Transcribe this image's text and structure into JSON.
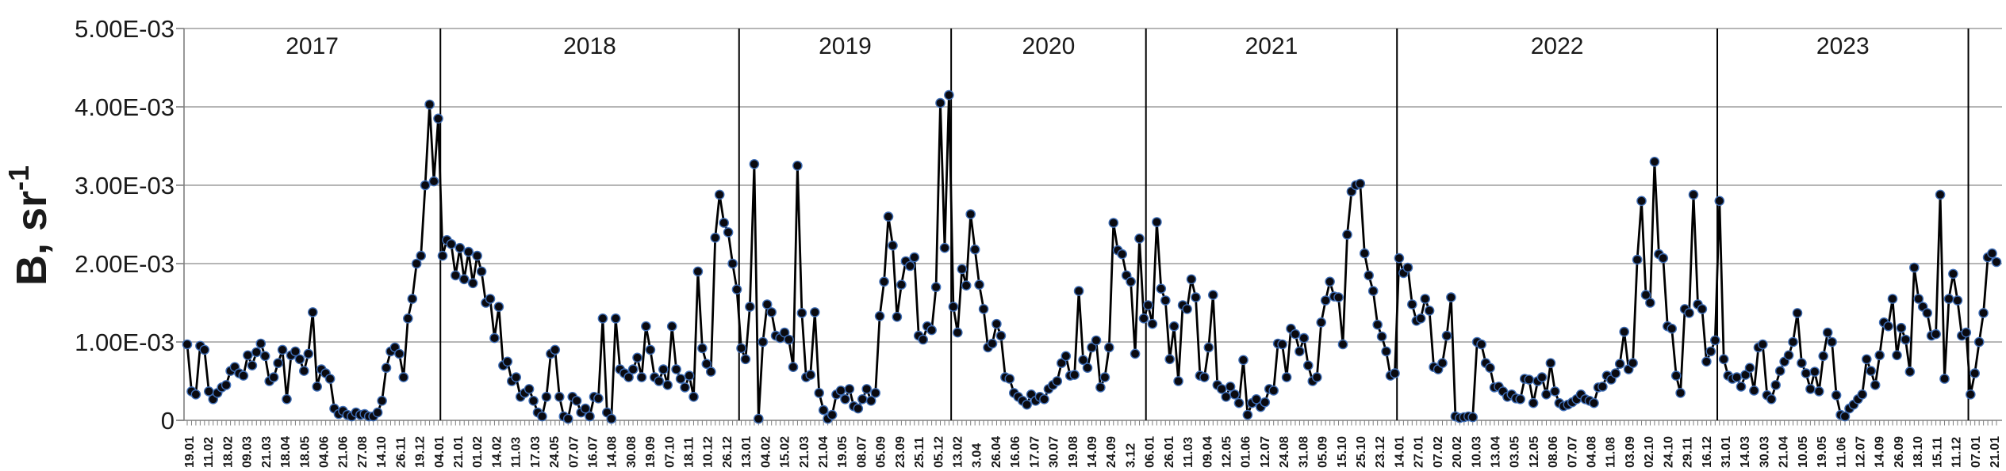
{
  "chart_data": {
    "type": "line",
    "title": "",
    "xlabel": "",
    "ylabel": "B, sr⁻¹",
    "ylabel_base": "B, sr",
    "ylabel_sup": "-1",
    "ylim": [
      0,
      0.005
    ],
    "values_scale": 0.001,
    "values_unit": "sr^-1 (values listed in units of 1e-3)",
    "grid": true,
    "legend_position": "none",
    "marker": "filled-circle",
    "colors": {
      "line": "#000000",
      "marker_fill": "#0a0a10",
      "marker_edge": "#3e6db5",
      "gridline": "#9e9e9e",
      "axis": "#7f7f7f",
      "divider": "#000000",
      "text": "#1a1a1a"
    },
    "y_tick_labels": [
      "0",
      "1.00E-03",
      "2.00E-03",
      "3.00E-03",
      "4.00E-03",
      "5.00E-03"
    ],
    "x_tick_labels": [
      "19.01",
      "11.02",
      "18.02",
      "09.03",
      "21.03",
      "18.04",
      "18.05",
      "04.06",
      "21.06",
      "27.08",
      "14.10",
      "26.11",
      "19.12",
      "04.01",
      "21.01",
      "01.02",
      "14.02",
      "11.03",
      "17.03",
      "24.05",
      "07.07",
      "16.07",
      "14.08",
      "30.08",
      "19.09",
      "07.10",
      "18.11",
      "10.12",
      "26.12",
      "13.01",
      "04.02",
      "15.02",
      "21.03",
      "21.04",
      "19.05",
      "08.07",
      "05.09",
      "23.09",
      "25.11",
      "05.12",
      "13.02",
      "3.04",
      "26.04",
      "16.06",
      "17.07",
      "30.07",
      "19.08",
      "14.09",
      "24.09",
      "3.12",
      "06.01",
      "26.01",
      "11.03",
      "09.04",
      "12.05",
      "01.06",
      "12.07",
      "24.08",
      "31.08",
      "05.09",
      "15.10",
      "25.10",
      "23.12",
      "14.01",
      "27.01",
      "07.02",
      "20.02",
      "10.03",
      "13.04",
      "03.05",
      "12.05",
      "08.06",
      "07.07",
      "04.08",
      "11.08",
      "03.09",
      "02.10",
      "24.10",
      "29.11",
      "16.12",
      "31.01",
      "14.03",
      "30.03",
      "21.04",
      "10.05",
      "19.05",
      "11.06",
      "12.07",
      "14.09",
      "26.09",
      "18.10",
      "15.11",
      "11.12",
      "07.01",
      "21.01"
    ],
    "year_groups": [
      {
        "year": "2017",
        "values": [
          0.97,
          0.37,
          0.33,
          0.95,
          0.9,
          0.37,
          0.27,
          0.35,
          0.42,
          0.45,
          0.63,
          0.68,
          0.6,
          0.57,
          0.83,
          0.7,
          0.87,
          0.98,
          0.82,
          0.5,
          0.55,
          0.73,
          0.9,
          0.27,
          0.83,
          0.88,
          0.78,
          0.63,
          0.85,
          1.38,
          0.43,
          0.65,
          0.6,
          0.53,
          0.15,
          0.08,
          0.12,
          0.07,
          0.05,
          0.1,
          0.07,
          0.08,
          0.05,
          0.05,
          0.1,
          0.25,
          0.67,
          0.88,
          0.93,
          0.85,
          0.55,
          1.3,
          1.55,
          2.0,
          2.1,
          3.0,
          4.03,
          3.05,
          3.85
        ]
      },
      {
        "year": "2018",
        "values": [
          2.1,
          2.3,
          2.25,
          1.85,
          2.2,
          1.8,
          2.15,
          1.75,
          2.1,
          1.9,
          1.5,
          1.55,
          1.05,
          1.45,
          0.7,
          0.75,
          0.5,
          0.55,
          0.3,
          0.35,
          0.4,
          0.25,
          0.1,
          0.05,
          0.3,
          0.85,
          0.9,
          0.3,
          0.05,
          0.02,
          0.3,
          0.25,
          0.1,
          0.15,
          0.05,
          0.3,
          0.28,
          1.3,
          0.1,
          0.02,
          1.3,
          0.65,
          0.6,
          0.55,
          0.65,
          0.8,
          0.55,
          1.2,
          0.9,
          0.55,
          0.5,
          0.65,
          0.45,
          1.2,
          0.65,
          0.53,
          0.42,
          0.57,
          0.3,
          1.9,
          0.92,
          0.72,
          0.62,
          2.33,
          2.88,
          2.52,
          2.4,
          2.0,
          1.67
        ]
      },
      {
        "year": "2019",
        "values": [
          0.92,
          0.78,
          1.45,
          3.27,
          0.02,
          1.0,
          1.48,
          1.38,
          1.08,
          1.05,
          1.12,
          1.03,
          0.68,
          3.25,
          1.37,
          0.55,
          0.58,
          1.38,
          0.35,
          0.13,
          0.02,
          0.07,
          0.33,
          0.38,
          0.27,
          0.4,
          0.18,
          0.15,
          0.27,
          0.4,
          0.25,
          0.35,
          1.33,
          1.77,
          2.6,
          2.23,
          1.32,
          1.73,
          2.03,
          1.97,
          2.08,
          1.08,
          1.03,
          1.2,
          1.15,
          1.7,
          4.05,
          2.2,
          4.15
        ]
      },
      {
        "year": "2020",
        "values": [
          1.45,
          1.12,
          1.93,
          1.72,
          2.63,
          2.18,
          1.73,
          1.42,
          0.93,
          0.98,
          1.23,
          1.08,
          0.55,
          0.53,
          0.35,
          0.3,
          0.25,
          0.2,
          0.33,
          0.25,
          0.3,
          0.27,
          0.4,
          0.45,
          0.5,
          0.73,
          0.82,
          0.57,
          0.58,
          1.65,
          0.77,
          0.67,
          0.93,
          1.02,
          0.42,
          0.55,
          0.93,
          2.52,
          2.17,
          2.12,
          1.85,
          1.77,
          0.85,
          2.32,
          1.3
        ]
      },
      {
        "year": "2021",
        "values": [
          1.47,
          1.23,
          2.53,
          1.68,
          1.53,
          0.78,
          1.2,
          0.5,
          1.47,
          1.42,
          1.8,
          1.57,
          0.57,
          0.55,
          0.93,
          1.6,
          0.45,
          0.4,
          0.3,
          0.43,
          0.33,
          0.22,
          0.77,
          0.07,
          0.22,
          0.27,
          0.17,
          0.23,
          0.4,
          0.38,
          0.98,
          0.97,
          0.55,
          1.17,
          1.1,
          0.88,
          1.05,
          0.7,
          0.5,
          0.55,
          1.25,
          1.53,
          1.77,
          1.58,
          1.57,
          0.97,
          2.37,
          2.92,
          3.0,
          3.02,
          2.13,
          1.85,
          1.65,
          1.22,
          1.07,
          0.88,
          0.57,
          0.6
        ]
      },
      {
        "year": "2022",
        "values": [
          2.07,
          1.88,
          1.95,
          1.48,
          1.27,
          1.3,
          1.55,
          1.4,
          0.68,
          0.65,
          0.73,
          1.08,
          1.57,
          0.05,
          0.03,
          0.04,
          0.05,
          0.04,
          1.0,
          0.97,
          0.73,
          0.67,
          0.42,
          0.43,
          0.37,
          0.3,
          0.33,
          0.28,
          0.27,
          0.53,
          0.52,
          0.22,
          0.5,
          0.55,
          0.33,
          0.73,
          0.37,
          0.22,
          0.18,
          0.2,
          0.23,
          0.27,
          0.33,
          0.27,
          0.25,
          0.22,
          0.42,
          0.43,
          0.57,
          0.52,
          0.6,
          0.72,
          1.13,
          0.65,
          0.73,
          2.05,
          2.8,
          1.6,
          1.5,
          3.3,
          2.12,
          2.07,
          1.2,
          1.17,
          0.57,
          0.35,
          1.42,
          1.37,
          2.88,
          1.48,
          1.42,
          0.75,
          0.88,
          1.02
        ]
      },
      {
        "year": "2023",
        "values": [
          2.8,
          0.78,
          0.57,
          0.53,
          0.55,
          0.43,
          0.58,
          0.67,
          0.38,
          0.93,
          0.97,
          0.32,
          0.27,
          0.45,
          0.63,
          0.75,
          0.83,
          1.0,
          1.37,
          0.73,
          0.6,
          0.4,
          0.62,
          0.37,
          0.82,
          1.12,
          1.0,
          0.32,
          0.07,
          0.05,
          0.15,
          0.2,
          0.27,
          0.33,
          0.78,
          0.63,
          0.45,
          0.83,
          1.25,
          1.2,
          1.55,
          0.83,
          1.18,
          1.03,
          0.62,
          1.95,
          1.55,
          1.45,
          1.37,
          1.08,
          1.1,
          2.88,
          0.53,
          1.55,
          1.87,
          1.53,
          1.08,
          1.12
        ]
      },
      {
        "year": "",
        "values": [
          0.33,
          0.6,
          1.0,
          1.37,
          2.08,
          2.13,
          2.02
        ]
      }
    ]
  }
}
